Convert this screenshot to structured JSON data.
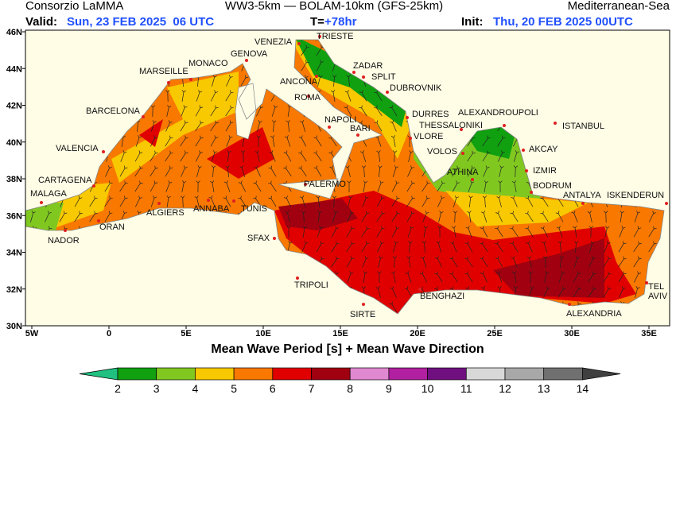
{
  "header": {
    "left": "Consorzio LaMMA",
    "center": "WW3-5km — BOLAM-10km (GFS-25km)",
    "right": "Mediterranean-Sea",
    "valid_label": "Valid:",
    "valid": "Sun, 23 FEB 2025  06 UTC",
    "t_label": "T=",
    "t_value": "+78hr",
    "init_label": "Init:",
    "init": "Thu, 20 FEB 2025 00UTC"
  },
  "map": {
    "lon_labels": [
      "5W",
      "0",
      "5E",
      "10E",
      "15E",
      "20E",
      "25E",
      "30E",
      "35E"
    ],
    "lat_labels": [
      "46N",
      "44N",
      "42N",
      "40N",
      "38N",
      "36N",
      "34N",
      "32N",
      "30N"
    ],
    "cities": [
      "VENEZIA",
      "TRIESTE",
      "GENOVA",
      "MONACO",
      "MARSEILLE",
      "ZADAR",
      "SPLIT",
      "ANCONA",
      "DUBROVNIK",
      "ROMA",
      "BARCELONA",
      "NAPOLI",
      "BARI",
      "DURRES",
      "ALEXANDROUPOLI",
      "THESSALONIKI",
      "ISTANBUL",
      "VALENCIA",
      "VLORE",
      "VOLOS",
      "AKCAY",
      "IZMIR",
      "ATHINA",
      "CARTAGENA",
      "PALERMO",
      "BODRUM",
      "MALAGA",
      "ANTALYA",
      "ISKENDERUN",
      "ALGIERS",
      "ANNABA",
      "TUNIS",
      "ORAN",
      "NADOR",
      "SFAX",
      "TRIPOLI",
      "TEL",
      "AVIV",
      "BENGHAZI",
      "SIRTE",
      "ALEXANDRIA"
    ],
    "caption": "Mean Wave Period [s] + Mean Wave Direction"
  },
  "legend": {
    "labels": [
      "2",
      "3",
      "4",
      "5",
      "6",
      "7",
      "8",
      "9",
      "10",
      "11",
      "12",
      "13",
      "14"
    ]
  }
}
